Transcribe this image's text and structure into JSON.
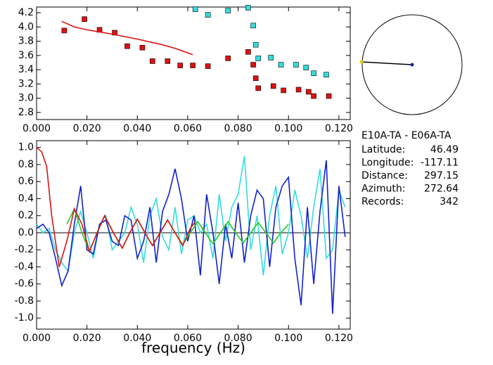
{
  "chart_data": [
    {
      "type": "scatter",
      "xlim": [
        0,
        0.1245
      ],
      "ylim": [
        2.7,
        4.28
      ],
      "xticks": [
        {
          "value": 0,
          "label": "0.000"
        },
        {
          "value": 0.02,
          "label": "0.020"
        },
        {
          "value": 0.04,
          "label": "0.040"
        },
        {
          "value": 0.06,
          "label": "0.060"
        },
        {
          "value": 0.08,
          "label": "0.080"
        },
        {
          "value": 0.1,
          "label": "0.100"
        },
        {
          "value": 0.12,
          "label": "0.120"
        }
      ],
      "yticks": [
        4.2,
        {
          "value": 4.0,
          "label": "4.0"
        },
        3.8,
        3.6,
        3.4,
        3.2,
        {
          "value": 3.0,
          "label": "3.0"
        },
        2.8
      ],
      "series": [
        {
          "mode": "markers",
          "color": "#dd1111",
          "x": [
            0.011,
            0.019,
            0.025,
            0.031,
            0.036,
            0.042,
            0.046,
            0.052,
            0.057,
            0.062,
            0.068,
            0.076,
            0.084,
            0.086,
            0.087,
            0.088,
            0.094,
            0.098,
            0.104,
            0.108,
            0.11,
            0.116
          ],
          "values": [
            3.95,
            4.11,
            3.96,
            3.92,
            3.73,
            3.71,
            3.52,
            3.52,
            3.46,
            3.46,
            3.45,
            3.56,
            3.65,
            3.47,
            3.28,
            3.14,
            3.17,
            3.11,
            3.12,
            3.09,
            3.03,
            3.03
          ]
        },
        {
          "mode": "markers",
          "color": "#33dddd",
          "x": [
            0.063,
            0.068,
            0.076,
            0.084,
            0.086,
            0.087,
            0.088,
            0.093,
            0.097,
            0.103,
            0.107,
            0.11,
            0.115
          ],
          "values": [
            4.25,
            4.17,
            4.23,
            4.27,
            4.02,
            3.75,
            3.56,
            3.57,
            3.47,
            3.47,
            3.43,
            3.35,
            3.33
          ]
        },
        {
          "mode": "line",
          "color": "#dd1111",
          "x": [
            0.01,
            0.015,
            0.02,
            0.03,
            0.04,
            0.05,
            0.055,
            0.062
          ],
          "values": [
            4.08,
            4.0,
            3.96,
            3.9,
            3.83,
            3.75,
            3.7,
            3.61
          ]
        }
      ]
    },
    {
      "type": "line",
      "x_label": "frequency (Hz)",
      "zero_line": true,
      "xlim": [
        0,
        0.1245
      ],
      "ylim": [
        -1.13,
        1.08
      ],
      "xticks": [
        {
          "value": 0,
          "label": "0.000"
        },
        {
          "value": 0.02,
          "label": "0.020"
        },
        {
          "value": 0.04,
          "label": "0.040"
        },
        {
          "value": 0.06,
          "label": "0.060"
        },
        {
          "value": 0.08,
          "label": "0.080"
        },
        {
          "value": 0.1,
          "label": "0.100"
        },
        {
          "value": 0.12,
          "label": "0.120"
        }
      ],
      "yticks": [
        {
          "value": 1.0,
          "label": "1.0"
        },
        0.8,
        0.6,
        0.4,
        0.2,
        {
          "value": 0.0,
          "label": "0.0"
        },
        -0.2,
        -0.4,
        -0.6,
        -0.8,
        {
          "value": -1.0,
          "label": "-1.0"
        }
      ],
      "series": [
        {
          "color": "#33dddd",
          "x": [
            0,
            0.0025,
            0.005,
            0.0075,
            0.01,
            0.0125,
            0.015,
            0.0175,
            0.02,
            0.0225,
            0.025,
            0.0275,
            0.03,
            0.0325,
            0.035,
            0.0375,
            0.04,
            0.0425,
            0.045,
            0.0475,
            0.05,
            0.0525,
            0.055,
            0.0575,
            0.06,
            0.0625,
            0.065,
            0.0675,
            0.07,
            0.0725,
            0.075,
            0.0775,
            0.08,
            0.0825,
            0.085,
            0.0875,
            0.09,
            0.0925,
            0.095,
            0.0975,
            0.1,
            0.1025,
            0.105,
            0.1075,
            0.11,
            0.1125,
            0.115,
            0.1175,
            0.12,
            0.1225
          ],
          "values": [
            0.1,
            0.0,
            0.05,
            -0.2,
            -0.35,
            -0.45,
            0.0,
            0.25,
            0.0,
            -0.3,
            0.1,
            0.2,
            -0.2,
            -0.1,
            0.0,
            0.3,
            0.1,
            -0.35,
            0.2,
            0.4,
            -0.05,
            -0.2,
            0.3,
            -0.25,
            0.15,
            0.2,
            0.0,
            0.1,
            -0.3,
            0.45,
            -0.1,
            0.3,
            0.45,
            0.9,
            -0.2,
            0.2,
            -0.5,
            0.2,
            0.55,
            -0.25,
            0.0,
            0.5,
            0.2,
            -0.3,
            0.3,
            0.75,
            -0.3,
            -0.2,
            0.5,
            0.3
          ]
        },
        {
          "color": "#1122cc",
          "x": [
            0,
            0.0025,
            0.005,
            0.0075,
            0.01,
            0.0125,
            0.015,
            0.0175,
            0.02,
            0.0225,
            0.025,
            0.0275,
            0.03,
            0.0325,
            0.035,
            0.0375,
            0.04,
            0.0425,
            0.045,
            0.0475,
            0.05,
            0.0525,
            0.055,
            0.0575,
            0.06,
            0.0625,
            0.065,
            0.0675,
            0.07,
            0.0725,
            0.075,
            0.0775,
            0.08,
            0.0825,
            0.085,
            0.0875,
            0.09,
            0.0925,
            0.095,
            0.0975,
            0.1,
            0.1025,
            0.105,
            0.1075,
            0.11,
            0.1125,
            0.115,
            0.1175,
            0.12,
            0.1225
          ],
          "values": [
            0.05,
            0.1,
            0.0,
            -0.3,
            -0.62,
            -0.45,
            0.1,
            0.55,
            -0.2,
            -0.25,
            0.1,
            0.15,
            -0.1,
            -0.15,
            0.2,
            0.15,
            -0.3,
            -0.1,
            0.3,
            -0.35,
            0.25,
            0.45,
            0.75,
            0.4,
            -0.1,
            0.2,
            -0.5,
            0.45,
            0.0,
            -0.6,
            0.1,
            -0.3,
            0.35,
            -0.35,
            0.2,
            0.5,
            0.4,
            -0.4,
            0.3,
            0.55,
            0.65,
            -0.3,
            -0.85,
            0.3,
            -0.6,
            0.25,
            0.85,
            -0.95,
            0.55,
            -0.05
          ]
        },
        {
          "color": "#22cc22",
          "x": [
            0.012,
            0.015,
            0.018,
            0.021,
            0.024,
            0.027,
            0.0305,
            0.034,
            0.037,
            0.04,
            0.043,
            0.046,
            0.049,
            0.052,
            0.055,
            0.058,
            0.061,
            0.064,
            0.067,
            0.07,
            0.073,
            0.076,
            0.079,
            0.082,
            0.085,
            0.088,
            0.091,
            0.094,
            0.097,
            0.1
          ],
          "values": [
            0.1,
            0.28,
            0.0,
            -0.22,
            0.0,
            0.2,
            0.0,
            -0.18,
            0.0,
            0.16,
            0.0,
            -0.15,
            0.0,
            0.15,
            0.0,
            -0.14,
            0.0,
            0.13,
            0.0,
            -0.13,
            0.0,
            0.13,
            0.0,
            -0.12,
            0.0,
            0.12,
            0.0,
            -0.12,
            0.0,
            0.1
          ]
        },
        {
          "color": "#dd1111",
          "x": [
            0,
            0.002,
            0.004,
            0.006,
            0.009,
            0.012,
            0.015,
            0.018,
            0.021,
            0.024,
            0.027,
            0.0305,
            0.034,
            0.037,
            0.04,
            0.043,
            0.046,
            0.049,
            0.052,
            0.055,
            0.058,
            0.061,
            0.063
          ],
          "values": [
            1.0,
            0.95,
            0.78,
            0.2,
            -0.4,
            -0.1,
            0.28,
            0.1,
            -0.22,
            0.0,
            0.2,
            0.0,
            -0.18,
            0.0,
            0.16,
            0.0,
            -0.15,
            0.0,
            0.15,
            0.0,
            -0.15,
            0.05,
            0.13
          ]
        }
      ]
    }
  ],
  "info": {
    "title": "E10A-TA - E06A-TA",
    "rows": [
      [
        "Latitude:",
        "46.49"
      ],
      [
        "Longitude:",
        "-117.11"
      ],
      [
        "Distance:",
        "297.15"
      ],
      [
        "Azimuth:",
        "272.64"
      ],
      [
        "Records:",
        "342"
      ]
    ]
  }
}
